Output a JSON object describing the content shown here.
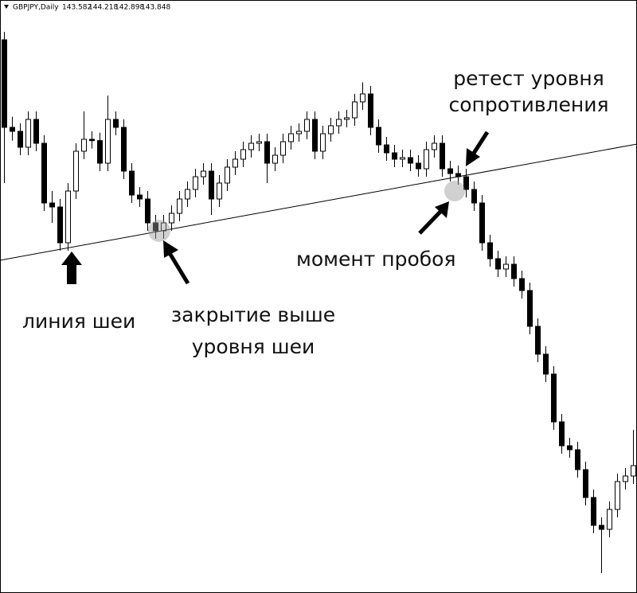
{
  "header": {
    "symbol": "GBPJPY,Daily",
    "quote": [
      143.582,
      144.218,
      142.898,
      143.848
    ]
  },
  "annotations": [
    "линия шеи",
    "закрытие выше",
    "уровня шеи",
    "момент пробоя",
    "ретест уровня",
    "сопротивления"
  ],
  "chart_data": {
    "type": "candlestick",
    "ylim": [
      139.65,
      162.0
    ],
    "up_color": "#ffffff",
    "down_color": "#000000",
    "candles": [
      [
        160.5,
        160.8,
        155.1,
        157.2
      ],
      [
        157.2,
        157.6,
        156.7,
        157.05
      ],
      [
        157.05,
        157.35,
        156.15,
        156.45
      ],
      [
        156.45,
        157.8,
        156.15,
        157.5
      ],
      [
        157.5,
        157.8,
        156.3,
        156.6
      ],
      [
        156.6,
        156.9,
        154.05,
        154.35
      ],
      [
        154.35,
        154.8,
        153.6,
        154.2
      ],
      [
        154.2,
        154.5,
        152.55,
        152.85
      ],
      [
        152.85,
        155.1,
        152.55,
        154.8
      ],
      [
        154.8,
        156.6,
        154.5,
        156.3
      ],
      [
        156.3,
        157.8,
        156.0,
        156.75
      ],
      [
        156.75,
        157.05,
        156.4,
        156.7
      ],
      [
        156.7,
        157.0,
        155.55,
        155.85
      ],
      [
        155.85,
        158.4,
        155.55,
        157.5
      ],
      [
        157.5,
        157.8,
        156.9,
        157.2
      ],
      [
        157.2,
        157.5,
        155.25,
        155.55
      ],
      [
        155.55,
        155.85,
        154.35,
        154.65
      ],
      [
        154.65,
        154.95,
        154.2,
        154.5
      ],
      [
        154.5,
        154.8,
        153.3,
        153.6
      ],
      [
        153.6,
        153.9,
        153.0,
        153.3
      ],
      [
        153.3,
        153.9,
        153.0,
        153.6
      ],
      [
        153.6,
        154.26,
        153.3,
        153.96
      ],
      [
        153.96,
        154.8,
        153.66,
        154.5
      ],
      [
        154.5,
        155.16,
        154.2,
        154.86
      ],
      [
        154.86,
        155.64,
        154.56,
        155.34
      ],
      [
        155.34,
        155.85,
        155.04,
        155.55
      ],
      [
        155.55,
        155.85,
        153.9,
        154.5
      ],
      [
        154.5,
        155.4,
        154.2,
        155.1
      ],
      [
        155.1,
        156.0,
        154.8,
        155.7
      ],
      [
        155.7,
        156.3,
        155.4,
        156.0
      ],
      [
        156.0,
        156.66,
        155.7,
        156.36
      ],
      [
        156.36,
        156.9,
        156.06,
        156.6
      ],
      [
        156.6,
        156.96,
        156.3,
        156.66
      ],
      [
        156.66,
        156.96,
        155.1,
        155.85
      ],
      [
        155.85,
        156.45,
        155.55,
        156.15
      ],
      [
        156.15,
        156.96,
        155.85,
        156.66
      ],
      [
        156.66,
        157.26,
        156.36,
        156.96
      ],
      [
        156.96,
        157.35,
        156.66,
        157.05
      ],
      [
        157.05,
        157.8,
        156.75,
        157.5
      ],
      [
        157.5,
        157.8,
        156.0,
        156.3
      ],
      [
        156.3,
        157.26,
        156.0,
        156.96
      ],
      [
        156.96,
        157.56,
        156.66,
        157.26
      ],
      [
        157.26,
        157.8,
        156.96,
        157.5
      ],
      [
        157.5,
        157.86,
        157.2,
        157.56
      ],
      [
        157.56,
        158.46,
        157.26,
        158.16
      ],
      [
        158.16,
        158.9,
        157.86,
        158.46
      ],
      [
        158.46,
        158.76,
        156.9,
        157.2
      ],
      [
        157.2,
        157.5,
        156.24,
        156.54
      ],
      [
        156.54,
        156.84,
        155.94,
        156.24
      ],
      [
        156.24,
        156.54,
        155.7,
        156.0
      ],
      [
        156.0,
        156.36,
        155.7,
        156.06
      ],
      [
        156.06,
        156.36,
        155.55,
        155.85
      ],
      [
        155.85,
        156.15,
        155.34,
        155.64
      ],
      [
        155.64,
        156.66,
        155.34,
        156.36
      ],
      [
        156.36,
        156.9,
        156.06,
        156.6
      ],
      [
        156.6,
        156.9,
        155.34,
        155.64
      ],
      [
        155.64,
        155.94,
        155.16,
        155.46
      ],
      [
        155.46,
        155.76,
        155.04,
        155.34
      ],
      [
        155.34,
        155.64,
        154.56,
        154.86
      ],
      [
        154.86,
        155.16,
        154.05,
        154.35
      ],
      [
        154.35,
        154.65,
        152.55,
        152.85
      ],
      [
        152.85,
        153.15,
        151.95,
        152.25
      ],
      [
        152.25,
        152.55,
        151.56,
        151.86
      ],
      [
        151.86,
        152.34,
        151.56,
        152.04
      ],
      [
        152.04,
        152.34,
        151.2,
        151.5
      ],
      [
        151.5,
        151.8,
        150.75,
        151.05
      ],
      [
        151.05,
        151.35,
        149.4,
        149.7
      ],
      [
        149.7,
        150.0,
        148.35,
        148.65
      ],
      [
        148.65,
        148.95,
        147.6,
        147.9
      ],
      [
        147.9,
        148.2,
        145.8,
        146.1
      ],
      [
        146.1,
        146.4,
        144.9,
        145.2
      ],
      [
        145.2,
        145.5,
        144.75,
        145.05
      ],
      [
        145.05,
        145.35,
        144.0,
        144.3
      ],
      [
        144.3,
        144.6,
        142.95,
        143.25
      ],
      [
        143.25,
        143.55,
        141.9,
        142.2
      ],
      [
        142.2,
        142.5,
        140.4,
        142.05
      ],
      [
        142.05,
        143.1,
        141.75,
        142.8
      ],
      [
        142.8,
        144.15,
        142.5,
        143.85
      ],
      [
        143.85,
        144.36,
        143.55,
        144.06
      ],
      [
        144.06,
        145.8,
        143.76,
        144.45
      ]
    ]
  }
}
